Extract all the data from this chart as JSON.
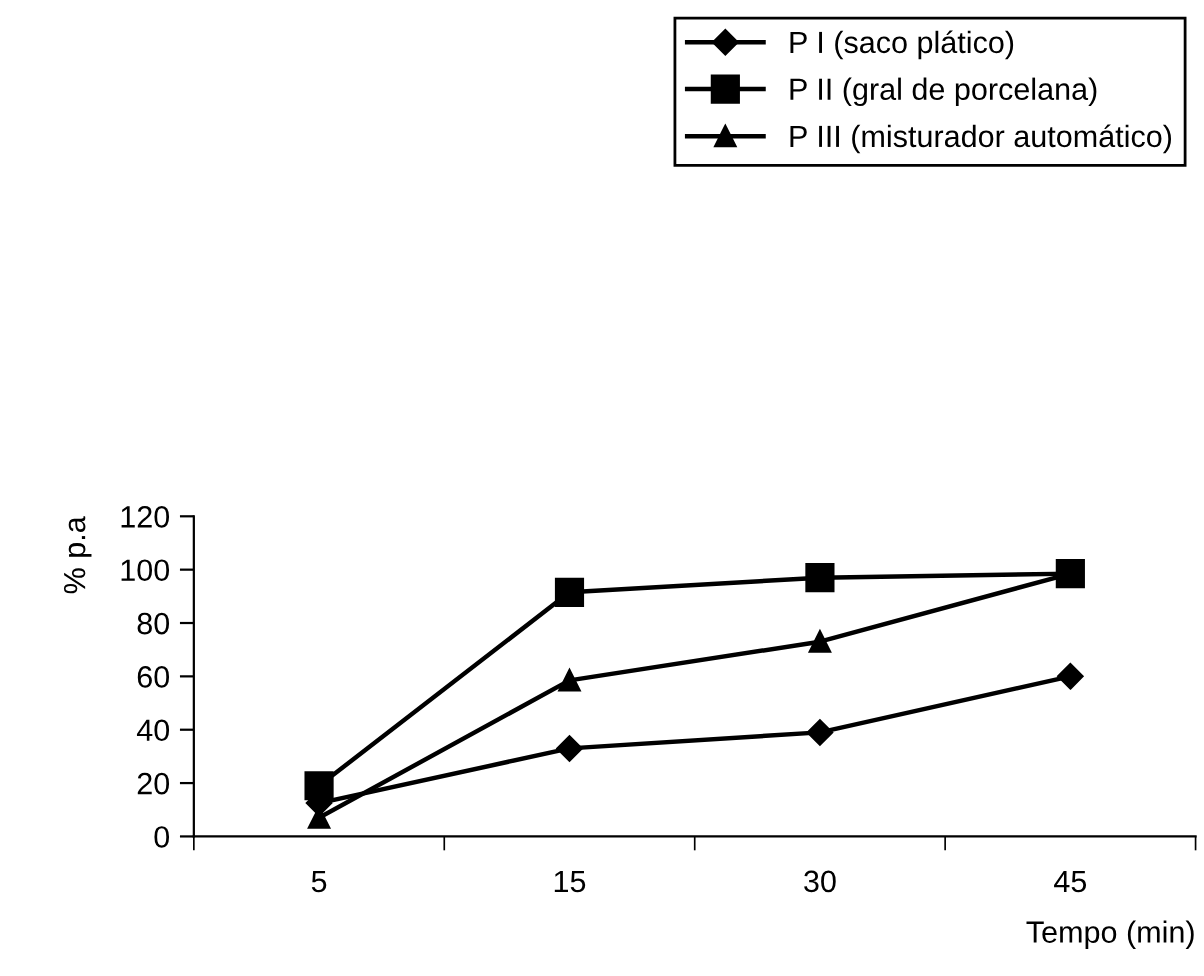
{
  "chart_data": {
    "type": "line",
    "xlabel": "Tempo (min)",
    "ylabel": "% p.a",
    "categories": [
      "5",
      "15",
      "30",
      "45"
    ],
    "series": [
      {
        "name": "P I (saco plático)",
        "color": "#000000",
        "marker": "diamond",
        "values": [
          12.5,
          33,
          39,
          60
        ]
      },
      {
        "name": "P II (gral de porcelana)",
        "color": "#000000",
        "marker": "square",
        "values": [
          19,
          91.5,
          97,
          98.5
        ]
      },
      {
        "name": "P III (misturador automático)",
        "color": "#000000",
        "marker": "triangle",
        "values": [
          7,
          58.5,
          73,
          98.5
        ]
      }
    ],
    "ylim": [
      0,
      120
    ],
    "yticks": [
      0,
      20,
      40,
      60,
      80,
      100,
      120
    ],
    "grid": false,
    "legend": "top right",
    "line_style": "solid"
  }
}
